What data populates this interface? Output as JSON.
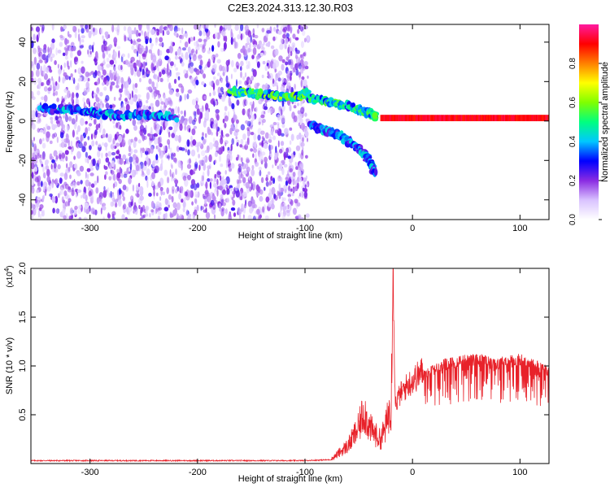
{
  "title": "C2E3.2024.313.12.30.R03",
  "colors": {
    "snr_line": "#e8222a",
    "spectrogram_dot": "#7a1fd6",
    "frame": "#000000"
  },
  "chart_data": [
    {
      "type": "heatmap",
      "xlabel": "Height of straight line (km)",
      "ylabel": "Frequency (Hz)",
      "xlim": [
        -355,
        127
      ],
      "ylim": [
        -50,
        49
      ],
      "xticks": [
        -300,
        -200,
        -100,
        0,
        100
      ],
      "yticks": [
        -40,
        -20,
        0,
        20,
        40
      ],
      "colorbar": {
        "label": "Normalized spectral amplitude",
        "range": [
          0,
          1
        ],
        "ticks": [
          "0.0",
          "0.2",
          "0.4",
          "0.6",
          "0.8"
        ],
        "tick_values": [
          0.0,
          0.2,
          0.4,
          0.6,
          0.8
        ],
        "colormap": [
          "#ffffff",
          "#d9c2ff",
          "#8a2be2",
          "#0000ff",
          "#00c8ff",
          "#00ff7f",
          "#80ff00",
          "#ffff00",
          "#ff8000",
          "#ff0000",
          "#ff1aa0"
        ]
      },
      "noise_region_x": [
        -355,
        -97
      ],
      "features": [
        {
          "x": [
            -345,
            -318,
            -295,
            -270,
            -245,
            -220
          ],
          "y": [
            6,
            6,
            4,
            3,
            3,
            2
          ],
          "amplitude": 0.35
        },
        {
          "x": [
            -170,
            -150,
            -130,
            -110,
            -97
          ],
          "y": [
            15,
            14,
            13,
            12,
            14
          ],
          "amplitude": 0.5
        },
        {
          "x": [
            -97,
            -80,
            -62,
            -50,
            -40,
            -34
          ],
          "y": [
            12,
            10,
            8,
            6,
            4,
            2
          ],
          "amplitude": 0.45
        },
        {
          "x": [
            -95,
            -80,
            -65,
            -50,
            -40,
            -35
          ],
          "y": [
            -2,
            -5,
            -8,
            -14,
            -20,
            -26
          ],
          "amplitude": 0.35
        },
        {
          "x": [
            -30,
            0,
            50,
            100,
            127
          ],
          "y": [
            1.5,
            1.5,
            1.5,
            1.5,
            1.5
          ],
          "amplitude": 0.95
        }
      ]
    },
    {
      "type": "line",
      "xlabel": "Height of straight line (km)",
      "ylabel": "SNR (10 * v/v)",
      "y_multiplier": "(x10",
      "y_multiplier_exp": "4",
      "y_multiplier_close": ")",
      "xlim": [
        -355,
        127
      ],
      "ylim": [
        0,
        20000
      ],
      "xticks": [
        -300,
        -200,
        -100,
        0,
        100
      ],
      "yticks": [
        5000,
        10000,
        15000,
        20000
      ],
      "ytick_labels": [
        "0.5",
        "1.0",
        "1.5",
        "2.0"
      ],
      "series": [
        {
          "x": [
            -355,
            -200,
            -100,
            -75,
            -60,
            -50,
            -45,
            -40,
            -35,
            -30,
            -25,
            -20,
            -18,
            -16,
            -12,
            -5,
            0,
            10,
            20,
            30,
            40,
            50,
            60,
            70,
            80,
            90,
            100,
            110,
            120,
            127
          ],
          "values": [
            300,
            300,
            300,
            400,
            1500,
            3000,
            4500,
            3000,
            2500,
            2000,
            3000,
            5000,
            20000,
            6000,
            7000,
            8000,
            8500,
            9500,
            10200,
            10800,
            11000,
            11200,
            11300,
            11100,
            10900,
            11100,
            11300,
            10900,
            10300,
            10000
          ]
        }
      ]
    }
  ]
}
